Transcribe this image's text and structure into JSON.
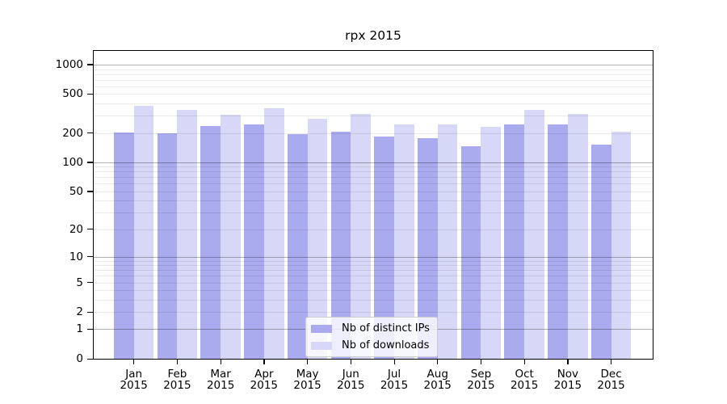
{
  "chart_data": {
    "type": "bar",
    "title": "rpx 2015",
    "categories": [
      "Jan",
      "Feb",
      "Mar",
      "Apr",
      "May",
      "Jun",
      "Jul",
      "Aug",
      "Sep",
      "Oct",
      "Nov",
      "Dec"
    ],
    "x_year_label": "2015",
    "series": [
      {
        "name": "Nb of distinct IPs",
        "color": "#aaaaef",
        "values": [
          202,
          199,
          237,
          244,
          196,
          206,
          185,
          176,
          147,
          247,
          244,
          152
        ]
      },
      {
        "name": "Nb of downloads",
        "color": "#d7d7f7",
        "values": [
          380,
          342,
          309,
          355,
          282,
          315,
          247,
          243,
          232,
          348,
          315,
          207
        ]
      }
    ],
    "xlabel": "",
    "ylabel": "",
    "yscale": "log1p",
    "ylim": [
      0,
      1381
    ],
    "yticks": [
      0,
      1,
      2,
      5,
      10,
      20,
      50,
      100,
      200,
      500,
      1000
    ],
    "grid_major_lines": [
      1,
      10,
      100,
      1000
    ],
    "grid": "on",
    "legend_position": "lower center"
  }
}
